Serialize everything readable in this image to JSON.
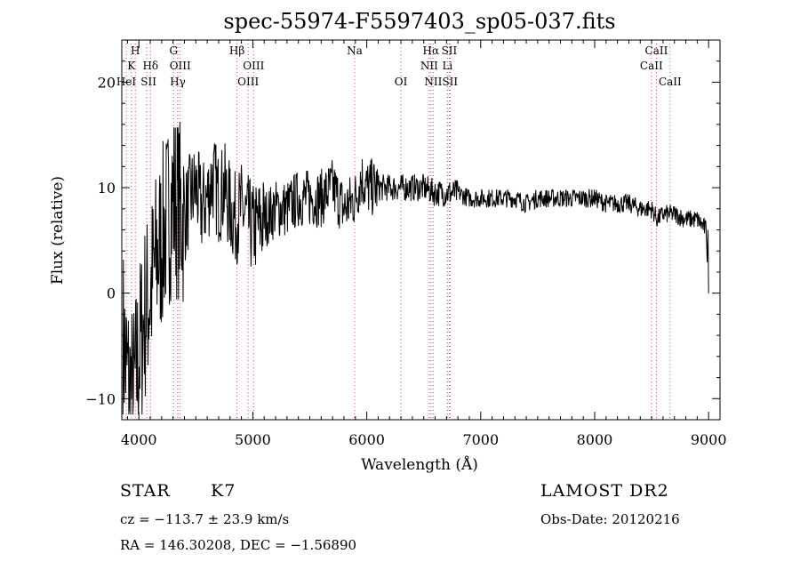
{
  "chart_data": {
    "type": "line",
    "title": "spec-55974-F5597403_sp05-037.fits",
    "xlabel": "Wavelength (Å)",
    "ylabel": "Flux (relative)",
    "xlim": [
      3850,
      9100
    ],
    "ylim": [
      -12,
      24
    ],
    "xticks": [
      4000,
      5000,
      6000,
      7000,
      8000,
      9000
    ],
    "yticks": [
      -10,
      0,
      10,
      20
    ],
    "grid": false,
    "line_color": "#000000",
    "marker_line_color": "#e04040",
    "series": [
      {
        "x": [
          3860,
          3900,
          3950,
          4000,
          4050,
          4100,
          4150,
          4200,
          4250,
          4300,
          4350,
          4400,
          4450,
          4500,
          4550,
          4600,
          4650,
          4700,
          4750,
          4800,
          4850,
          4900,
          4950,
          5000,
          5100,
          5200,
          5300,
          5400,
          5500,
          5600,
          5700,
          5800,
          5900,
          5950,
          6000,
          6100,
          6200,
          6300,
          6400,
          6500,
          6600,
          6700,
          6800,
          6900,
          7000,
          7100,
          7200,
          7300,
          7400,
          7500,
          7600,
          7700,
          7800,
          7900,
          8000,
          8100,
          8200,
          8300,
          8400,
          8500,
          8550,
          8600,
          8700,
          8800,
          8900,
          8980,
          9000
        ],
        "y": [
          -4,
          -8,
          -10,
          -6,
          -2,
          0,
          3,
          5,
          7,
          9,
          8,
          7,
          9,
          10,
          8,
          9,
          11,
          9,
          10,
          8,
          7,
          8,
          7,
          6,
          7,
          8,
          8,
          9,
          9,
          9,
          10,
          8,
          9,
          11,
          10,
          10,
          10,
          10,
          10,
          10,
          9.5,
          9.5,
          9.5,
          9,
          9,
          9,
          9,
          9,
          8.5,
          9,
          9,
          9,
          9,
          9,
          9,
          8.5,
          8.5,
          8.5,
          8,
          8,
          7,
          7.5,
          7.5,
          7,
          7,
          6,
          0
        ]
      }
    ],
    "spectral_lines": [
      {
        "name": "H",
        "x": 3969
      },
      {
        "name": "K",
        "x": 3934
      },
      {
        "name": "HeI",
        "x": 3889
      },
      {
        "name": "Hδ",
        "x": 4102
      },
      {
        "name": "SII",
        "x": 4069
      },
      {
        "name": "G",
        "x": 4305
      },
      {
        "name": "OIII",
        "x": 4363
      },
      {
        "name": "Hγ",
        "x": 4341
      },
      {
        "name": "Hβ",
        "x": 4861
      },
      {
        "name": "OIII",
        "x": 5007
      },
      {
        "name": "OIII",
        "x": 4959
      },
      {
        "name": "Na",
        "x": 5893
      },
      {
        "name": "OI",
        "x": 6300
      },
      {
        "name": "Hα",
        "x": 6563
      },
      {
        "name": "SII",
        "x": 6724
      },
      {
        "name": "NII",
        "x": 6548
      },
      {
        "name": "Li",
        "x": 6708
      },
      {
        "name": "NII",
        "x": 6583
      },
      {
        "name": "SII",
        "x": 6731
      },
      {
        "name": "CaII",
        "x": 8542
      },
      {
        "name": "CaII",
        "x": 8498
      },
      {
        "name": "CaII",
        "x": 8662
      }
    ]
  },
  "info": {
    "class": "STAR",
    "subclass": "K7",
    "survey": "LAMOST DR2",
    "cz": "cz = −113.7 ± 23.9 km/s",
    "obs_date": "Obs-Date: 20120216",
    "coords": "RA = 146.30208, DEC =  −1.56890"
  }
}
